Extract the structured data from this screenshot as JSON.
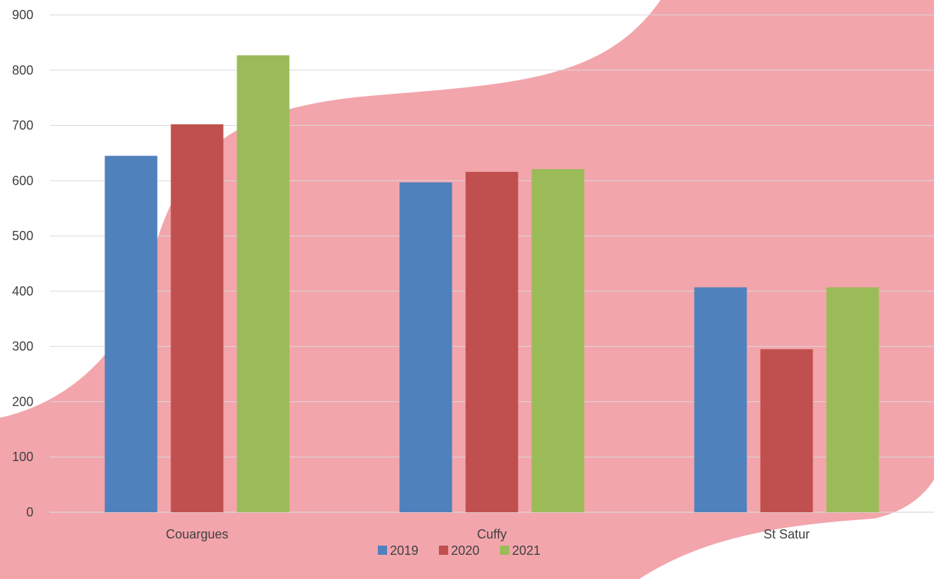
{
  "chart_data": {
    "type": "bar",
    "categories": [
      "Couargues",
      "Cuffy",
      "St Satur"
    ],
    "series": [
      {
        "name": "2019",
        "color": "#4f81bd",
        "values": [
          645,
          597,
          407
        ]
      },
      {
        "name": "2020",
        "color": "#c0504d",
        "values": [
          702,
          616,
          295
        ]
      },
      {
        "name": "2021",
        "color": "#9bbb59",
        "values": [
          827,
          621,
          407
        ]
      }
    ],
    "ylim": [
      0,
      900
    ],
    "yticks": [
      "0",
      "100",
      "200",
      "300",
      "400",
      "500",
      "600",
      "700",
      "800",
      "900"
    ],
    "grid": true,
    "legend_position": "bottom",
    "background_shape_color": "#f3a5ac"
  }
}
